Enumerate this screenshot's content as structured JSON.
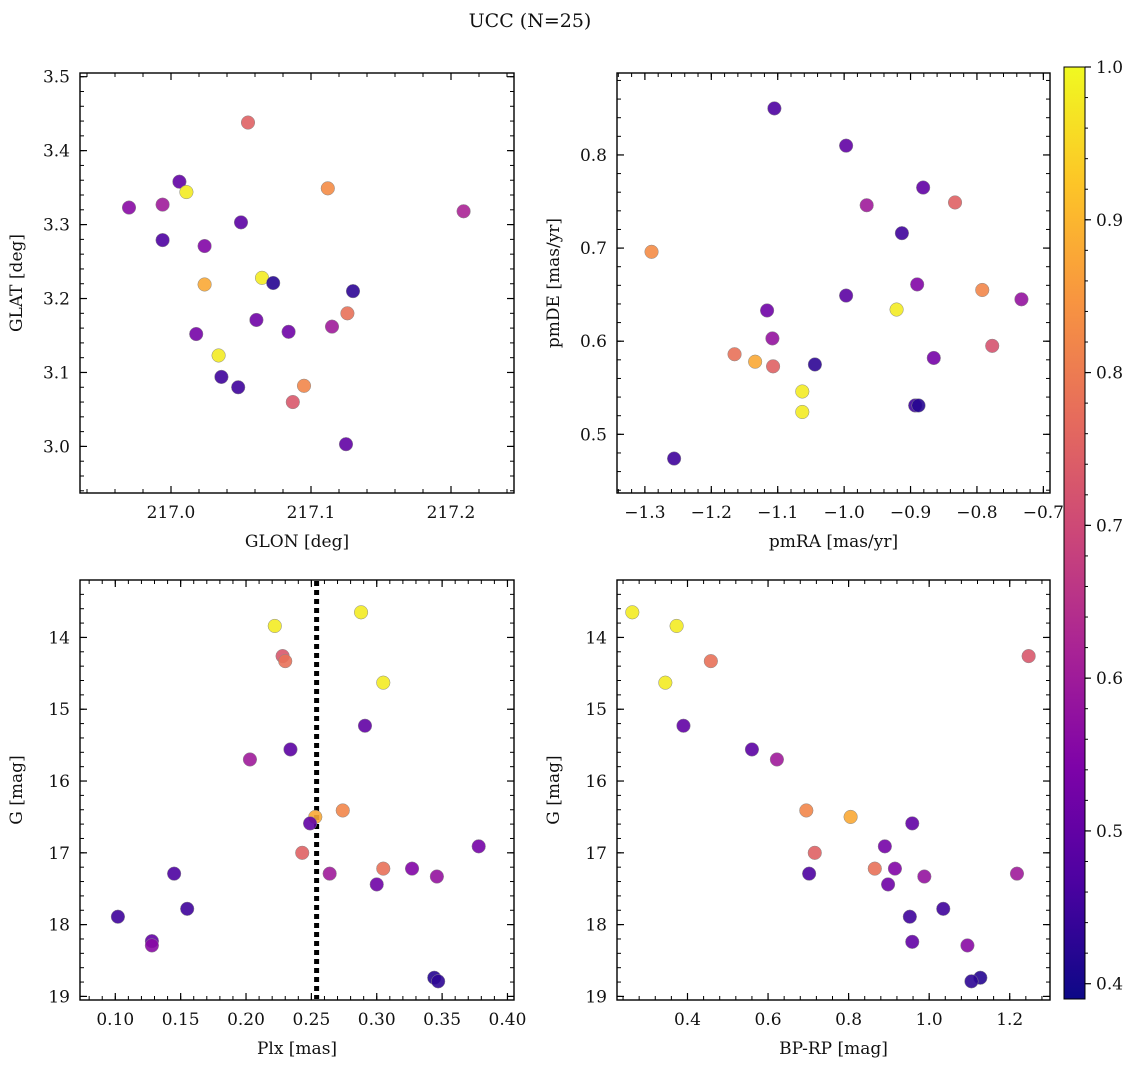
{
  "figure": {
    "title": "UCC (N=25)"
  },
  "colorbar": {
    "min": 0.39,
    "max": 1.0,
    "ticks": [
      "0.4",
      "0.5",
      "0.6",
      "0.7",
      "0.8",
      "0.9",
      "1.0"
    ],
    "cmap": "plasma"
  },
  "chart_data": [
    {
      "id": "glon-glat",
      "type": "scatter",
      "xlabel": "GLON [deg]",
      "ylabel": "GLAT [deg]",
      "xlim": [
        216.935,
        217.245
      ],
      "ylim": [
        2.937,
        3.505
      ],
      "xticks": [
        {
          "v": 217.0,
          "label": "217.0"
        },
        {
          "v": 217.1,
          "label": "217.1"
        },
        {
          "v": 217.2,
          "label": "217.2"
        }
      ],
      "yticks": [
        {
          "v": 3.0,
          "label": "3.0"
        },
        {
          "v": 3.1,
          "label": "3.1"
        },
        {
          "v": 3.2,
          "label": "3.2"
        },
        {
          "v": 3.3,
          "label": "3.3"
        },
        {
          "v": 3.4,
          "label": "3.4"
        },
        {
          "v": 3.5,
          "label": "3.5"
        }
      ],
      "yinvert": false,
      "points": [
        {
          "x": 216.97,
          "y": 3.323,
          "c": 0.56
        },
        {
          "x": 216.994,
          "y": 3.327,
          "c": 0.6
        },
        {
          "x": 216.994,
          "y": 3.279,
          "c": 0.47
        },
        {
          "x": 217.006,
          "y": 3.358,
          "c": 0.5
        },
        {
          "x": 217.011,
          "y": 3.344,
          "c": 0.98
        },
        {
          "x": 217.018,
          "y": 3.152,
          "c": 0.53
        },
        {
          "x": 217.024,
          "y": 3.271,
          "c": 0.55
        },
        {
          "x": 217.024,
          "y": 3.219,
          "c": 0.88
        },
        {
          "x": 217.034,
          "y": 3.123,
          "c": 0.98
        },
        {
          "x": 217.036,
          "y": 3.094,
          "c": 0.45
        },
        {
          "x": 217.048,
          "y": 3.08,
          "c": 0.45
        },
        {
          "x": 217.05,
          "y": 3.303,
          "c": 0.49
        },
        {
          "x": 217.055,
          "y": 3.438,
          "c": 0.75
        },
        {
          "x": 217.061,
          "y": 3.171,
          "c": 0.52
        },
        {
          "x": 217.065,
          "y": 3.228,
          "c": 0.98
        },
        {
          "x": 217.073,
          "y": 3.221,
          "c": 0.42
        },
        {
          "x": 217.084,
          "y": 3.155,
          "c": 0.52
        },
        {
          "x": 217.087,
          "y": 3.06,
          "c": 0.73
        },
        {
          "x": 217.095,
          "y": 3.082,
          "c": 0.82
        },
        {
          "x": 217.112,
          "y": 3.349,
          "c": 0.83
        },
        {
          "x": 217.115,
          "y": 3.162,
          "c": 0.6
        },
        {
          "x": 217.125,
          "y": 3.003,
          "c": 0.5
        },
        {
          "x": 217.126,
          "y": 3.18,
          "c": 0.78
        },
        {
          "x": 217.13,
          "y": 3.21,
          "c": 0.43
        },
        {
          "x": 217.209,
          "y": 3.318,
          "c": 0.62
        }
      ]
    },
    {
      "id": "pmra-pmde",
      "type": "scatter",
      "xlabel": "pmRA [mas/yr]",
      "ylabel": "pmDE [mas/yr]",
      "xlim": [
        -1.342,
        -0.69
      ],
      "ylim": [
        0.437,
        0.888
      ],
      "xticks": [
        {
          "v": -1.3,
          "label": "−1.3"
        },
        {
          "v": -1.2,
          "label": "−1.2"
        },
        {
          "v": -1.1,
          "label": "−1.1"
        },
        {
          "v": -1.0,
          "label": "−1.0"
        },
        {
          "v": -0.9,
          "label": "−0.9"
        },
        {
          "v": -0.8,
          "label": "−0.8"
        },
        {
          "v": -0.7,
          "label": "−0.7"
        }
      ],
      "yticks": [
        {
          "v": 0.5,
          "label": "0.5"
        },
        {
          "v": 0.6,
          "label": "0.6"
        },
        {
          "v": 0.7,
          "label": "0.7"
        },
        {
          "v": 0.8,
          "label": "0.8"
        }
      ],
      "yinvert": false,
      "points": [
        {
          "x": -1.29,
          "y": 0.696,
          "c": 0.83
        },
        {
          "x": -1.256,
          "y": 0.474,
          "c": 0.45
        },
        {
          "x": -1.165,
          "y": 0.586,
          "c": 0.78
        },
        {
          "x": -1.134,
          "y": 0.578,
          "c": 0.88
        },
        {
          "x": -1.116,
          "y": 0.633,
          "c": 0.52
        },
        {
          "x": -1.108,
          "y": 0.603,
          "c": 0.58
        },
        {
          "x": -1.107,
          "y": 0.573,
          "c": 0.75
        },
        {
          "x": -1.105,
          "y": 0.85,
          "c": 0.47
        },
        {
          "x": -1.063,
          "y": 0.546,
          "c": 0.98
        },
        {
          "x": -1.063,
          "y": 0.524,
          "c": 0.98
        },
        {
          "x": -1.044,
          "y": 0.575,
          "c": 0.43
        },
        {
          "x": -0.997,
          "y": 0.81,
          "c": 0.5
        },
        {
          "x": -0.997,
          "y": 0.649,
          "c": 0.49
        },
        {
          "x": -0.966,
          "y": 0.746,
          "c": 0.6
        },
        {
          "x": -0.921,
          "y": 0.634,
          "c": 0.98
        },
        {
          "x": -0.913,
          "y": 0.716,
          "c": 0.45
        },
        {
          "x": -0.893,
          "y": 0.531,
          "c": 0.45
        },
        {
          "x": -0.888,
          "y": 0.531,
          "c": 0.42
        },
        {
          "x": -0.89,
          "y": 0.661,
          "c": 0.55
        },
        {
          "x": -0.881,
          "y": 0.765,
          "c": 0.5
        },
        {
          "x": -0.865,
          "y": 0.582,
          "c": 0.53
        },
        {
          "x": -0.833,
          "y": 0.749,
          "c": 0.75
        },
        {
          "x": -0.792,
          "y": 0.655,
          "c": 0.82
        },
        {
          "x": -0.777,
          "y": 0.595,
          "c": 0.72
        },
        {
          "x": -0.733,
          "y": 0.645,
          "c": 0.58
        }
      ]
    },
    {
      "id": "plx-g",
      "type": "scatter",
      "xlabel": "Plx [mas]",
      "ylabel": "G [mag]",
      "xlim": [
        0.073,
        0.405
      ],
      "ylim": [
        13.2,
        19.05
      ],
      "xticks": [
        {
          "v": 0.1,
          "label": "0.10"
        },
        {
          "v": 0.15,
          "label": "0.15"
        },
        {
          "v": 0.2,
          "label": "0.20"
        },
        {
          "v": 0.25,
          "label": "0.25"
        },
        {
          "v": 0.3,
          "label": "0.30"
        },
        {
          "v": 0.35,
          "label": "0.35"
        },
        {
          "v": 0.4,
          "label": "0.40"
        }
      ],
      "yticks": [
        {
          "v": 14,
          "label": "14"
        },
        {
          "v": 15,
          "label": "15"
        },
        {
          "v": 16,
          "label": "16"
        },
        {
          "v": 17,
          "label": "17"
        },
        {
          "v": 18,
          "label": "18"
        },
        {
          "v": 19,
          "label": "19"
        }
      ],
      "yinvert": true,
      "vline": {
        "x": 0.254,
        "style": "dotted",
        "color": "#000000"
      },
      "points": [
        {
          "x": 0.288,
          "y": 13.65,
          "c": 0.98
        },
        {
          "x": 0.222,
          "y": 13.84,
          "c": 0.98
        },
        {
          "x": 0.228,
          "y": 14.26,
          "c": 0.73
        },
        {
          "x": 0.23,
          "y": 14.33,
          "c": 0.78
        },
        {
          "x": 0.305,
          "y": 14.63,
          "c": 0.98
        },
        {
          "x": 0.291,
          "y": 15.23,
          "c": 0.5
        },
        {
          "x": 0.234,
          "y": 15.56,
          "c": 0.49
        },
        {
          "x": 0.203,
          "y": 15.7,
          "c": 0.6
        },
        {
          "x": 0.274,
          "y": 16.41,
          "c": 0.82
        },
        {
          "x": 0.253,
          "y": 16.5,
          "c": 0.88
        },
        {
          "x": 0.249,
          "y": 16.59,
          "c": 0.5
        },
        {
          "x": 0.243,
          "y": 17.0,
          "c": 0.75
        },
        {
          "x": 0.378,
          "y": 16.91,
          "c": 0.53
        },
        {
          "x": 0.305,
          "y": 17.22,
          "c": 0.78
        },
        {
          "x": 0.327,
          "y": 17.22,
          "c": 0.55
        },
        {
          "x": 0.264,
          "y": 17.29,
          "c": 0.6
        },
        {
          "x": 0.145,
          "y": 17.29,
          "c": 0.47
        },
        {
          "x": 0.346,
          "y": 17.33,
          "c": 0.58
        },
        {
          "x": 0.3,
          "y": 17.44,
          "c": 0.52
        },
        {
          "x": 0.155,
          "y": 17.78,
          "c": 0.45
        },
        {
          "x": 0.102,
          "y": 17.89,
          "c": 0.45
        },
        {
          "x": 0.128,
          "y": 18.23,
          "c": 0.5
        },
        {
          "x": 0.128,
          "y": 18.29,
          "c": 0.56
        },
        {
          "x": 0.344,
          "y": 18.74,
          "c": 0.42
        },
        {
          "x": 0.347,
          "y": 18.79,
          "c": 0.43
        }
      ]
    },
    {
      "id": "bprp-g",
      "type": "scatter",
      "xlabel": "BP-RP [mag]",
      "ylabel": "G [mag]",
      "xlim": [
        0.225,
        1.3
      ],
      "ylim": [
        13.2,
        19.05
      ],
      "xticks": [
        {
          "v": 0.4,
          "label": "0.4"
        },
        {
          "v": 0.6,
          "label": "0.6"
        },
        {
          "v": 0.8,
          "label": "0.8"
        },
        {
          "v": 1.0,
          "label": "1.0"
        },
        {
          "v": 1.2,
          "label": "1.2"
        }
      ],
      "yticks": [
        {
          "v": 14,
          "label": "14"
        },
        {
          "v": 15,
          "label": "15"
        },
        {
          "v": 16,
          "label": "16"
        },
        {
          "v": 17,
          "label": "17"
        },
        {
          "v": 18,
          "label": "18"
        },
        {
          "v": 19,
          "label": "19"
        }
      ],
      "yinvert": true,
      "points": [
        {
          "x": 0.263,
          "y": 13.65,
          "c": 0.98
        },
        {
          "x": 0.373,
          "y": 13.84,
          "c": 0.98
        },
        {
          "x": 0.345,
          "y": 14.63,
          "c": 0.98
        },
        {
          "x": 0.458,
          "y": 14.33,
          "c": 0.78
        },
        {
          "x": 1.247,
          "y": 14.26,
          "c": 0.73
        },
        {
          "x": 0.39,
          "y": 15.23,
          "c": 0.5
        },
        {
          "x": 0.56,
          "y": 15.56,
          "c": 0.49
        },
        {
          "x": 0.622,
          "y": 15.7,
          "c": 0.6
        },
        {
          "x": 0.695,
          "y": 16.41,
          "c": 0.82
        },
        {
          "x": 0.805,
          "y": 16.5,
          "c": 0.88
        },
        {
          "x": 0.958,
          "y": 16.59,
          "c": 0.5
        },
        {
          "x": 0.716,
          "y": 17.0,
          "c": 0.75
        },
        {
          "x": 0.89,
          "y": 16.91,
          "c": 0.53
        },
        {
          "x": 0.702,
          "y": 17.29,
          "c": 0.47
        },
        {
          "x": 0.865,
          "y": 17.22,
          "c": 0.78
        },
        {
          "x": 0.915,
          "y": 17.22,
          "c": 0.55
        },
        {
          "x": 0.988,
          "y": 17.33,
          "c": 0.58
        },
        {
          "x": 1.218,
          "y": 17.29,
          "c": 0.6
        },
        {
          "x": 0.898,
          "y": 17.44,
          "c": 0.52
        },
        {
          "x": 1.035,
          "y": 17.78,
          "c": 0.45
        },
        {
          "x": 0.952,
          "y": 17.89,
          "c": 0.45
        },
        {
          "x": 0.958,
          "y": 18.24,
          "c": 0.5
        },
        {
          "x": 1.095,
          "y": 18.29,
          "c": 0.56
        },
        {
          "x": 1.127,
          "y": 18.74,
          "c": 0.42
        },
        {
          "x": 1.105,
          "y": 18.79,
          "c": 0.43
        }
      ]
    }
  ]
}
